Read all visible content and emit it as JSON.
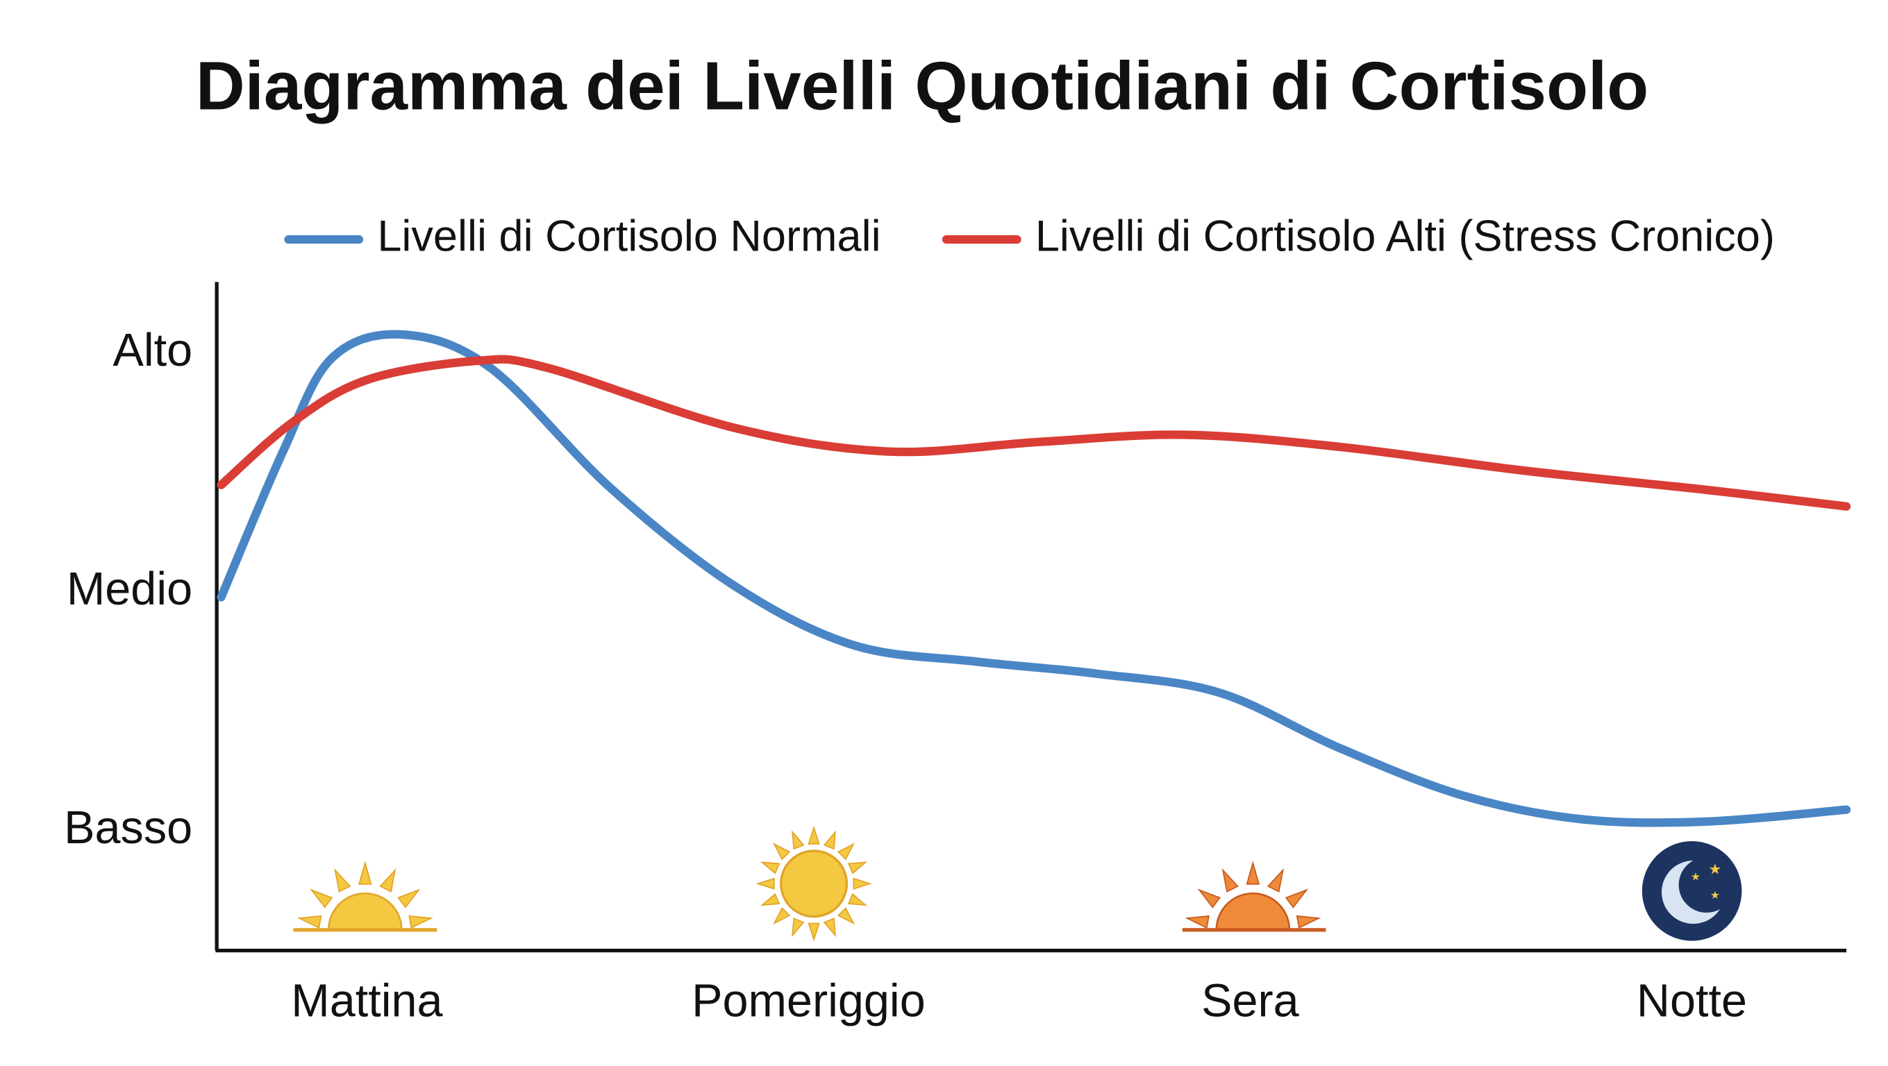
{
  "chart_data": {
    "type": "line",
    "title": "Diagramma dei Livelli Quotidiani di Cortisolo",
    "xlim": [
      0.66,
      4.35
    ],
    "xticks": [
      {
        "value": 1,
        "label": "Mattina"
      },
      {
        "value": 2,
        "label": "Pomeriggio"
      },
      {
        "value": 3,
        "label": "Sera"
      },
      {
        "value": 4,
        "label": "Notte"
      }
    ],
    "ylim": [
      -0.5,
      2.3
    ],
    "yticks": [
      {
        "value": 0,
        "label": "Basso"
      },
      {
        "value": 1,
        "label": "Medio"
      },
      {
        "value": 2,
        "label": "Alto"
      }
    ],
    "legend": "top",
    "series": [
      {
        "name": "Livelli di Cortisolo Normali",
        "color": "#4a86c5",
        "x": [
          0.67,
          0.81,
          0.92,
          1.08,
          1.28,
          1.55,
          1.83,
          2.1,
          2.38,
          2.65,
          2.93,
          3.2,
          3.48,
          3.75,
          4.03,
          4.35
        ],
        "values": [
          0.98,
          1.59,
          1.98,
          2.08,
          1.94,
          1.44,
          1.03,
          0.78,
          0.71,
          0.66,
          0.58,
          0.35,
          0.15,
          0.05,
          0.04,
          0.09
        ]
      },
      {
        "name": "Livelli di Cortisolo Alti (Stress Cronico)",
        "color": "#d93d35",
        "x": [
          0.67,
          0.83,
          1.0,
          1.25,
          1.41,
          1.83,
          2.18,
          2.52,
          2.85,
          3.2,
          3.62,
          4.03,
          4.35
        ],
        "values": [
          1.45,
          1.71,
          1.89,
          1.97,
          1.94,
          1.69,
          1.59,
          1.63,
          1.66,
          1.61,
          1.51,
          1.43,
          1.36
        ]
      }
    ]
  }
}
